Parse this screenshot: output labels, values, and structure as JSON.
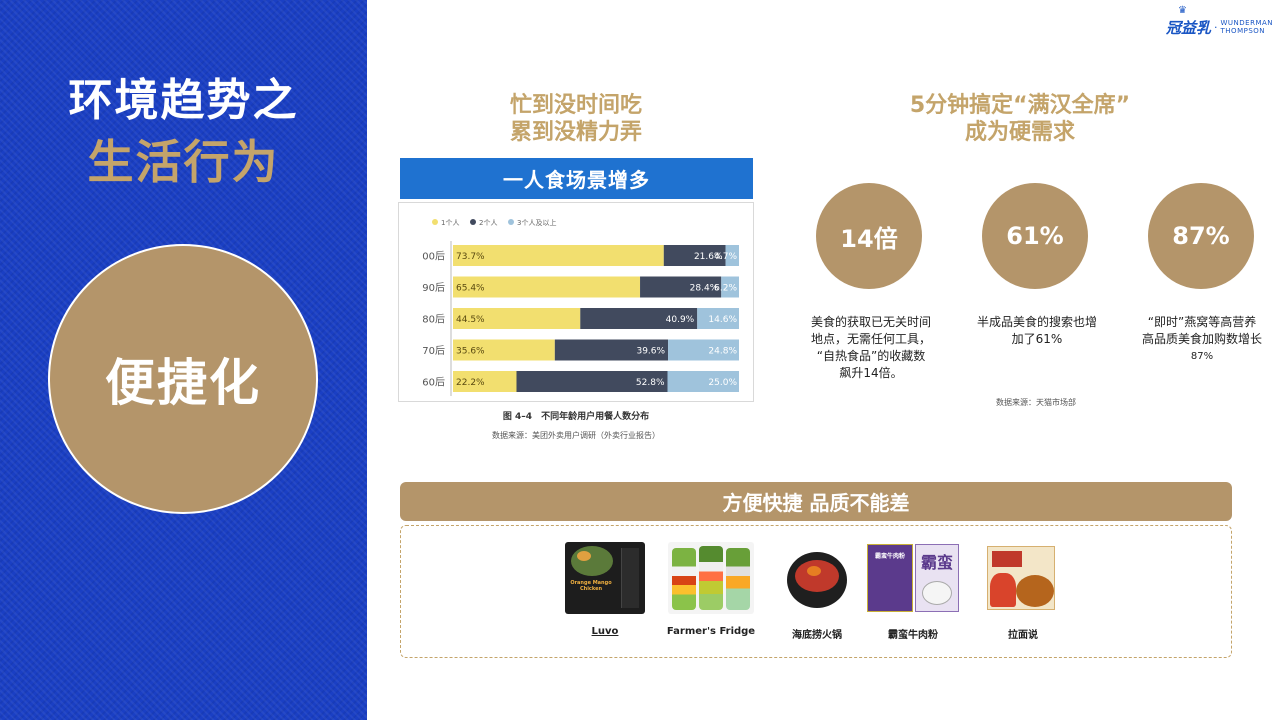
{
  "left_panel": {
    "title_line1": "环境趋势之",
    "title_line2": "生活行为",
    "circle_text": "便捷化"
  },
  "logo": {
    "cn": "冠益乳",
    "en_line1": "WUNDERMAN",
    "en_line2": "THOMPSON"
  },
  "left_heading": {
    "line1": "忙到没时间吃",
    "line2": "累到没精力弄"
  },
  "right_heading": {
    "line1": "5分钟搞定“满汉全席”",
    "line2": "成为硬需求"
  },
  "chart_banner": "一人食场景增多",
  "chart_data": {
    "type": "bar",
    "orientation": "horizontal",
    "stacked": true,
    "percent_stacked": true,
    "categories": [
      "00后",
      "90后",
      "80后",
      "70后",
      "60后"
    ],
    "series": [
      {
        "name": "1个人",
        "color": "#f2df6f",
        "values": [
          73.7,
          65.4,
          44.5,
          35.6,
          22.2
        ]
      },
      {
        "name": "2个人",
        "color": "#414a5e",
        "values": [
          21.6,
          28.4,
          40.9,
          39.6,
          52.8
        ]
      },
      {
        "name": "3个人及以上",
        "color": "#9fc3dc",
        "values": [
          4.7,
          6.2,
          14.6,
          24.8,
          25.0
        ]
      }
    ],
    "value_labels": [
      [
        "73.7%",
        "21.6%",
        "4.7%"
      ],
      [
        "65.4%",
        "28.4%",
        "6.2%"
      ],
      [
        "44.5%",
        "40.9%",
        "14.6%"
      ],
      [
        "35.6%",
        "39.6%",
        "24.8%"
      ],
      [
        "22.2%",
        "52.8%",
        "25.0%"
      ]
    ],
    "legend_position": "top-left",
    "grid": false,
    "caption": "图 4–4　不同年龄用户用餐人数分布",
    "source": "数据来源：美团外卖用户调研（外卖行业报告）"
  },
  "stats": [
    {
      "value": "14倍",
      "desc_lines": [
        "美食的获取已无关时间",
        "地点，无需任何工具，",
        "“自热食品”的收藏数",
        "飙升14倍。"
      ]
    },
    {
      "value": "61%",
      "desc_lines": [
        "半成品美食的搜索也增",
        "加了61%"
      ]
    },
    {
      "value": "87%",
      "desc_lines": [
        "“即时”燕窝等高营养",
        "高品质美食加购数增长"
      ],
      "desc_sub": "87%"
    }
  ],
  "stats_source": "数据来源：天猫市场部",
  "bottom_banner": "方便快捷 品质不能差",
  "products": [
    {
      "name": "Luvo",
      "pack_text": "Orange Mango Chicken"
    },
    {
      "name": "Farmer's Fridge"
    },
    {
      "name": "海底捞火锅"
    },
    {
      "name": "霸蛮牛肉粉",
      "pack_text": "霸蛮"
    },
    {
      "name": "拉面说"
    }
  ]
}
